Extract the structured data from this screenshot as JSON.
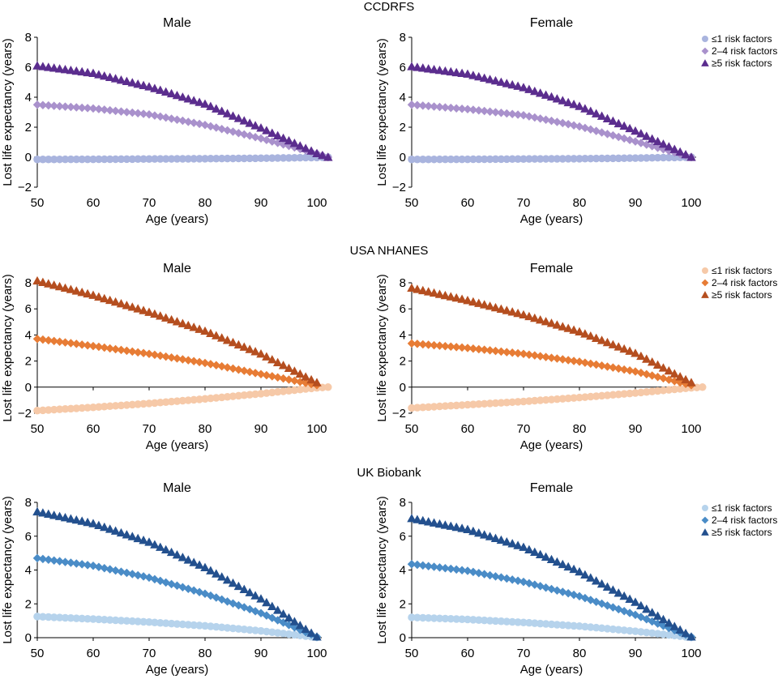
{
  "figure_rows": [
    {
      "title": "CCDRFS",
      "colors": [
        "#a9b4de",
        "#a991cc",
        "#5b2d8e"
      ],
      "legend_labels": [
        "≤1 risk factors",
        "2–4 risk factors",
        "≥5 risk factors"
      ]
    },
    {
      "title": "USA NHANES",
      "colors": [
        "#f6c9a8",
        "#e77c35",
        "#b54e1f"
      ],
      "legend_labels": [
        "≤1 risk factors",
        "2–4 risk factors",
        "≥5 risk factors"
      ]
    },
    {
      "title": "UK Biobank",
      "colors": [
        "#b6d3ec",
        "#4a8cc7",
        "#23508e"
      ],
      "legend_labels": [
        "≤1 risk factors",
        "2–4 risk factors",
        "≥5 risk factors"
      ]
    }
  ],
  "legend_markers": [
    "circle",
    "diamond",
    "triangle"
  ],
  "chart_data": [
    {
      "type": "scatter",
      "group": "CCDRFS",
      "title": "Male",
      "xlabel": "Age (years)",
      "ylabel": "Lost life expectancy (years)",
      "xlim": [
        50,
        100
      ],
      "ylim": [
        -2,
        8
      ],
      "xticks": [
        50,
        60,
        70,
        80,
        90,
        100
      ],
      "yticks": [
        -2,
        0,
        2,
        4,
        6,
        8
      ],
      "series": [
        {
          "name": "≤1 risk factors",
          "marker": "circle",
          "x_start": 50,
          "x_end": 102,
          "x_step": 1,
          "anchors": [
            [
              50,
              -0.15
            ],
            [
              60,
              -0.14
            ],
            [
              70,
              -0.12
            ],
            [
              80,
              -0.1
            ],
            [
              90,
              -0.07
            ],
            [
              100,
              -0.02
            ],
            [
              102,
              0
            ]
          ]
        },
        {
          "name": "2–4 risk factors",
          "marker": "diamond",
          "x_start": 50,
          "x_end": 102,
          "x_step": 1,
          "anchors": [
            [
              50,
              3.5
            ],
            [
              60,
              3.25
            ],
            [
              70,
              2.85
            ],
            [
              80,
              2.15
            ],
            [
              90,
              1.25
            ],
            [
              100,
              0.25
            ],
            [
              102,
              0
            ]
          ]
        },
        {
          "name": "≥5 risk factors",
          "marker": "triangle",
          "x_start": 50,
          "x_end": 102,
          "x_step": 1,
          "anchors": [
            [
              50,
              6.1
            ],
            [
              60,
              5.6
            ],
            [
              70,
              4.7
            ],
            [
              80,
              3.55
            ],
            [
              90,
              1.95
            ],
            [
              100,
              0.25
            ],
            [
              102,
              0
            ]
          ]
        }
      ]
    },
    {
      "type": "scatter",
      "group": "CCDRFS",
      "title": "Female",
      "xlabel": "Age (years)",
      "ylabel": "Lost life expectancy (years)",
      "xlim": [
        50,
        100
      ],
      "ylim": [
        -2,
        8
      ],
      "xticks": [
        50,
        60,
        70,
        80,
        90,
        100
      ],
      "yticks": [
        -2,
        0,
        2,
        4,
        6,
        8
      ],
      "series": [
        {
          "name": "≤1 risk factors",
          "marker": "circle",
          "x_start": 50,
          "x_end": 100,
          "x_step": 1,
          "anchors": [
            [
              50,
              -0.15
            ],
            [
              60,
              -0.14
            ],
            [
              70,
              -0.12
            ],
            [
              80,
              -0.1
            ],
            [
              90,
              -0.06
            ],
            [
              100,
              0
            ]
          ]
        },
        {
          "name": "2–4 risk factors",
          "marker": "diamond",
          "x_start": 50,
          "x_end": 100,
          "x_step": 1,
          "anchors": [
            [
              50,
              3.5
            ],
            [
              60,
              3.2
            ],
            [
              70,
              2.8
            ],
            [
              80,
              2.05
            ],
            [
              90,
              1.05
            ],
            [
              100,
              0
            ]
          ]
        },
        {
          "name": "≥5 risk factors",
          "marker": "triangle",
          "x_start": 50,
          "x_end": 100,
          "x_step": 1,
          "anchors": [
            [
              50,
              6.05
            ],
            [
              60,
              5.55
            ],
            [
              70,
              4.65
            ],
            [
              80,
              3.4
            ],
            [
              90,
              1.75
            ],
            [
              100,
              0
            ]
          ]
        }
      ]
    },
    {
      "type": "scatter",
      "group": "USA NHANES",
      "title": "Male",
      "xlabel": "Age (years)",
      "ylabel": "Lost life expectancy (years)",
      "xlim": [
        50,
        100
      ],
      "ylim": [
        -2,
        8
      ],
      "xticks": [
        50,
        60,
        70,
        80,
        90,
        100
      ],
      "yticks": [
        -2,
        0,
        2,
        4,
        6,
        8
      ],
      "series": [
        {
          "name": "≤1 risk factors",
          "marker": "circle",
          "x_start": 50,
          "x_end": 102,
          "x_step": 1,
          "anchors": [
            [
              50,
              -1.8
            ],
            [
              60,
              -1.55
            ],
            [
              70,
              -1.25
            ],
            [
              80,
              -0.9
            ],
            [
              90,
              -0.5
            ],
            [
              100,
              -0.05
            ],
            [
              102,
              0
            ]
          ]
        },
        {
          "name": "2–4 risk factors",
          "marker": "diamond",
          "x_start": 50,
          "x_end": 100,
          "x_step": 1,
          "anchors": [
            [
              50,
              3.7
            ],
            [
              60,
              3.15
            ],
            [
              70,
              2.55
            ],
            [
              80,
              1.85
            ],
            [
              90,
              1.0
            ],
            [
              100,
              0.15
            ]
          ]
        },
        {
          "name": "≥5 risk factors",
          "marker": "triangle",
          "x_start": 50,
          "x_end": 100,
          "x_step": 1,
          "anchors": [
            [
              50,
              8.15
            ],
            [
              60,
              7.05
            ],
            [
              70,
              5.75
            ],
            [
              80,
              4.3
            ],
            [
              90,
              2.55
            ],
            [
              100,
              0.35
            ]
          ]
        }
      ]
    },
    {
      "type": "scatter",
      "group": "USA NHANES",
      "title": "Female",
      "xlabel": "Age (years)",
      "ylabel": "Lost life expectancy (years)",
      "xlim": [
        50,
        100
      ],
      "ylim": [
        -2,
        8
      ],
      "xticks": [
        50,
        60,
        70,
        80,
        90,
        100
      ],
      "yticks": [
        -2,
        0,
        2,
        4,
        6,
        8
      ],
      "series": [
        {
          "name": "≤1 risk factors",
          "marker": "circle",
          "x_start": 50,
          "x_end": 102,
          "x_step": 1,
          "anchors": [
            [
              50,
              -1.6
            ],
            [
              60,
              -1.35
            ],
            [
              70,
              -1.1
            ],
            [
              80,
              -0.8
            ],
            [
              90,
              -0.45
            ],
            [
              100,
              -0.05
            ],
            [
              102,
              0
            ]
          ]
        },
        {
          "name": "2–4 risk factors",
          "marker": "diamond",
          "x_start": 50,
          "x_end": 100,
          "x_step": 1,
          "anchors": [
            [
              50,
              3.35
            ],
            [
              60,
              3.0
            ],
            [
              70,
              2.55
            ],
            [
              80,
              1.95
            ],
            [
              90,
              1.2
            ],
            [
              100,
              0.15
            ]
          ]
        },
        {
          "name": "≥5 risk factors",
          "marker": "triangle",
          "x_start": 50,
          "x_end": 100,
          "x_step": 1,
          "anchors": [
            [
              50,
              7.6
            ],
            [
              60,
              6.65
            ],
            [
              70,
              5.55
            ],
            [
              80,
              4.25
            ],
            [
              90,
              2.6
            ],
            [
              100,
              0.35
            ]
          ]
        }
      ]
    },
    {
      "type": "scatter",
      "group": "UK Biobank",
      "title": "Male",
      "xlabel": "Age (years)",
      "ylabel": "Lost life expectancy (years)",
      "xlim": [
        50,
        100
      ],
      "ylim": [
        0,
        8
      ],
      "xticks": [
        50,
        60,
        70,
        80,
        90,
        100
      ],
      "yticks": [
        0,
        2,
        4,
        6,
        8
      ],
      "series": [
        {
          "name": "≤1 risk factors",
          "marker": "circle",
          "x_start": 50,
          "x_end": 100,
          "x_step": 1,
          "anchors": [
            [
              50,
              1.25
            ],
            [
              60,
              1.1
            ],
            [
              70,
              0.92
            ],
            [
              80,
              0.7
            ],
            [
              90,
              0.4
            ],
            [
              100,
              0.02
            ]
          ]
        },
        {
          "name": "2–4 risk factors",
          "marker": "diamond",
          "x_start": 50,
          "x_end": 100,
          "x_step": 1,
          "anchors": [
            [
              50,
              4.7
            ],
            [
              60,
              4.25
            ],
            [
              70,
              3.55
            ],
            [
              80,
              2.6
            ],
            [
              90,
              1.45
            ],
            [
              100,
              0.05
            ]
          ]
        },
        {
          "name": "≥5 risk factors",
          "marker": "triangle",
          "x_start": 50,
          "x_end": 100,
          "x_step": 1,
          "anchors": [
            [
              50,
              7.45
            ],
            [
              60,
              6.75
            ],
            [
              70,
              5.65
            ],
            [
              80,
              4.15
            ],
            [
              90,
              2.3
            ],
            [
              100,
              0.05
            ]
          ]
        }
      ]
    },
    {
      "type": "scatter",
      "group": "UK Biobank",
      "title": "Female",
      "xlabel": "Age (years)",
      "ylabel": "Lost life expectancy (years)",
      "xlim": [
        50,
        100
      ],
      "ylim": [
        0,
        8
      ],
      "xticks": [
        50,
        60,
        70,
        80,
        90,
        100
      ],
      "yticks": [
        0,
        2,
        4,
        6,
        8
      ],
      "series": [
        {
          "name": "≤1 risk factors",
          "marker": "circle",
          "x_start": 50,
          "x_end": 100,
          "x_step": 1,
          "anchors": [
            [
              50,
              1.2
            ],
            [
              60,
              1.08
            ],
            [
              70,
              0.9
            ],
            [
              80,
              0.68
            ],
            [
              90,
              0.38
            ],
            [
              100,
              0.02
            ]
          ]
        },
        {
          "name": "2–4 risk factors",
          "marker": "diamond",
          "x_start": 50,
          "x_end": 100,
          "x_step": 1,
          "anchors": [
            [
              50,
              4.35
            ],
            [
              60,
              3.95
            ],
            [
              70,
              3.3
            ],
            [
              80,
              2.45
            ],
            [
              90,
              1.35
            ],
            [
              100,
              0.05
            ]
          ]
        },
        {
          "name": "≥5 risk factors",
          "marker": "triangle",
          "x_start": 50,
          "x_end": 100,
          "x_step": 1,
          "anchors": [
            [
              50,
              7.05
            ],
            [
              60,
              6.4
            ],
            [
              70,
              5.35
            ],
            [
              80,
              3.9
            ],
            [
              90,
              2.1
            ],
            [
              100,
              0.05
            ]
          ]
        }
      ]
    }
  ]
}
